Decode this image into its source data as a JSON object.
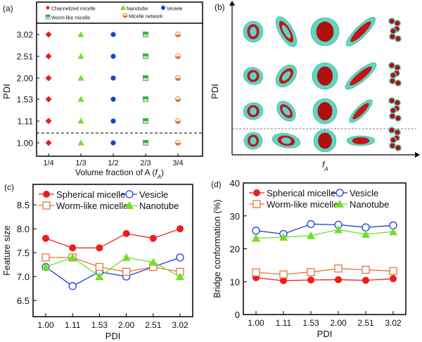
{
  "colors": {
    "red": "#ee1c1c",
    "blue": "#1c3fd8",
    "orange": "#e8743b",
    "green": "#6fe02a",
    "wormGreen": "#3fae3f",
    "cyan": "#5fd6c0",
    "darkred": "#b01010"
  },
  "panel_a": {
    "label": "(a)",
    "ylabel": "PDI",
    "xlabel": "Volume fraction of A (",
    "xlabel_var": "f",
    "xlabel_sub": "A",
    "xlabel_end": ")",
    "x_ticks": [
      "1/4",
      "1/3",
      "1/2",
      "2/3",
      "3/4"
    ],
    "y_ticks": [
      "3.02",
      "2.51",
      "2.00",
      "1.53",
      "1.11",
      "1.00"
    ],
    "legend": [
      "Channelized micelle",
      "Nanotube",
      "Vesiele",
      "Worm-like micelle",
      "Micelle network"
    ]
  },
  "panel_b": {
    "label": "(b)",
    "ylabel": "PDI",
    "xlabel_var": "f",
    "xlabel_sub": "A"
  },
  "chart_data": [
    {
      "type": "line",
      "title": "(c)",
      "xlabel": "PDI",
      "ylabel": "Feature size",
      "categories": [
        "1.00",
        "1.11",
        "1.53",
        "2.00",
        "2.51",
        "3.02"
      ],
      "y_ticks": [
        "6.5",
        "7.0",
        "7.5",
        "8.0",
        "8.5"
      ],
      "ylim": [
        6.16,
        8.93
      ],
      "legend": "top",
      "series": [
        {
          "name": "Spherical micelle",
          "marker": "filled-circle",
          "color": "#ee1c1c",
          "values": [
            7.8,
            7.6,
            7.6,
            7.9,
            7.8,
            8.0
          ]
        },
        {
          "name": "Vesicle",
          "marker": "open-circle",
          "color": "#1c3fd8",
          "values": [
            7.2,
            6.8,
            7.1,
            7.0,
            7.2,
            7.4
          ]
        },
        {
          "name": "Worm-like micelle",
          "marker": "open-square",
          "color": "#e8743b",
          "values": [
            7.4,
            7.4,
            7.2,
            7.1,
            7.2,
            7.1
          ]
        },
        {
          "name": "Nanotube",
          "marker": "filled-triangle",
          "color": "#6fe02a",
          "values": [
            7.2,
            7.4,
            7.0,
            7.4,
            7.3,
            7.0
          ]
        }
      ]
    },
    {
      "type": "line",
      "title": "(d)",
      "xlabel": "PDI",
      "ylabel": "Bridge conformation (%)",
      "categories": [
        "1.00",
        "1.11",
        "1.53",
        "2.00",
        "2.51",
        "3.02"
      ],
      "y_ticks": [
        "0",
        "10",
        "20",
        "30",
        "40"
      ],
      "ylim": [
        0,
        40
      ],
      "legend": "top",
      "series": [
        {
          "name": "Spherical micelle",
          "marker": "filled-circle",
          "color": "#ee1c1c",
          "values": [
            11.2,
            10.3,
            10.5,
            10.6,
            10.4,
            10.9
          ]
        },
        {
          "name": "Vesicle",
          "marker": "open-circle",
          "color": "#1c3fd8",
          "values": [
            25.5,
            24.5,
            27.5,
            27.3,
            26.5,
            27.1
          ]
        },
        {
          "name": "Worm-like micelle",
          "marker": "open-square",
          "color": "#e8743b",
          "values": [
            12.8,
            12.2,
            12.9,
            14.0,
            13.6,
            13.2
          ]
        },
        {
          "name": "Nanotube",
          "marker": "filled-triangle",
          "color": "#6fe02a",
          "values": [
            23.2,
            23.5,
            24.0,
            25.8,
            24.4,
            25.2
          ]
        }
      ]
    }
  ]
}
